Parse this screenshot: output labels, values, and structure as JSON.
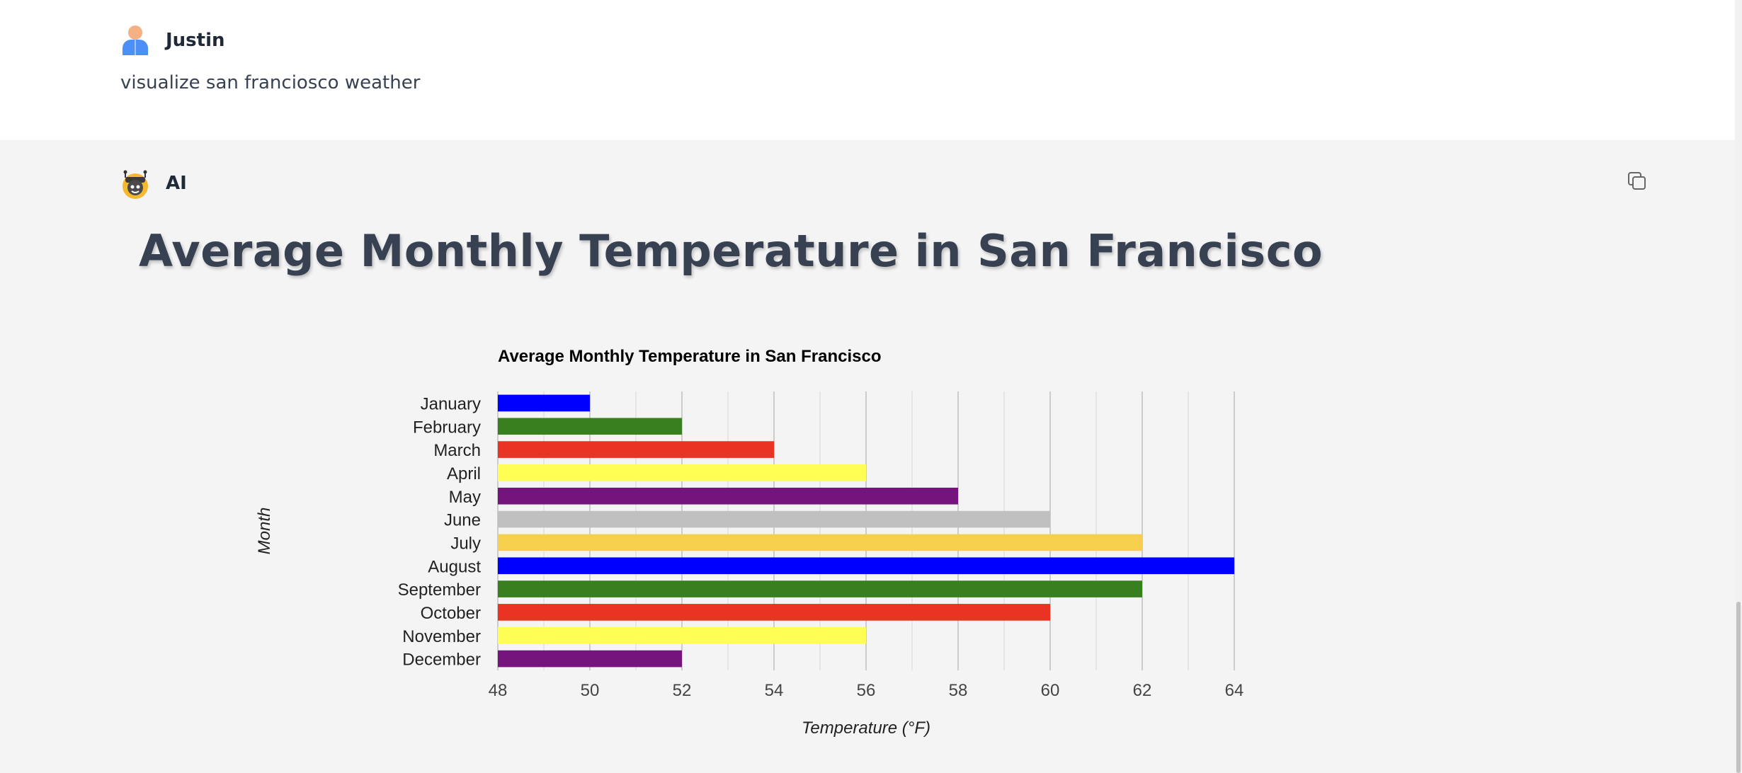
{
  "user_message": {
    "author": "Justin",
    "text": "visualize san franciosco weather"
  },
  "ai_message": {
    "author": "AI",
    "heading": "Average Monthly Temperature in San Francisco"
  },
  "chart_data": {
    "type": "bar",
    "orientation": "horizontal",
    "title": "Average Monthly Temperature in San Francisco",
    "xlabel": "Temperature (°F)",
    "ylabel": "Month",
    "xlim": [
      48,
      64
    ],
    "major_ticks": [
      48,
      50,
      52,
      54,
      56,
      58,
      60,
      62,
      64
    ],
    "minor_step": 1,
    "grid": true,
    "legend": "none",
    "categories": [
      "January",
      "February",
      "March",
      "April",
      "May",
      "June",
      "July",
      "August",
      "September",
      "October",
      "November",
      "December"
    ],
    "values": [
      50,
      52,
      54,
      56,
      58,
      60,
      62,
      64,
      62,
      60,
      56,
      52
    ],
    "colors": [
      "#0000ff",
      "#38801f",
      "#eb3324",
      "#fffe55",
      "#75147c",
      "#c0c0c0",
      "#f6d04d",
      "#0000ff",
      "#38801f",
      "#eb3324",
      "#fffe55",
      "#75147c"
    ]
  }
}
